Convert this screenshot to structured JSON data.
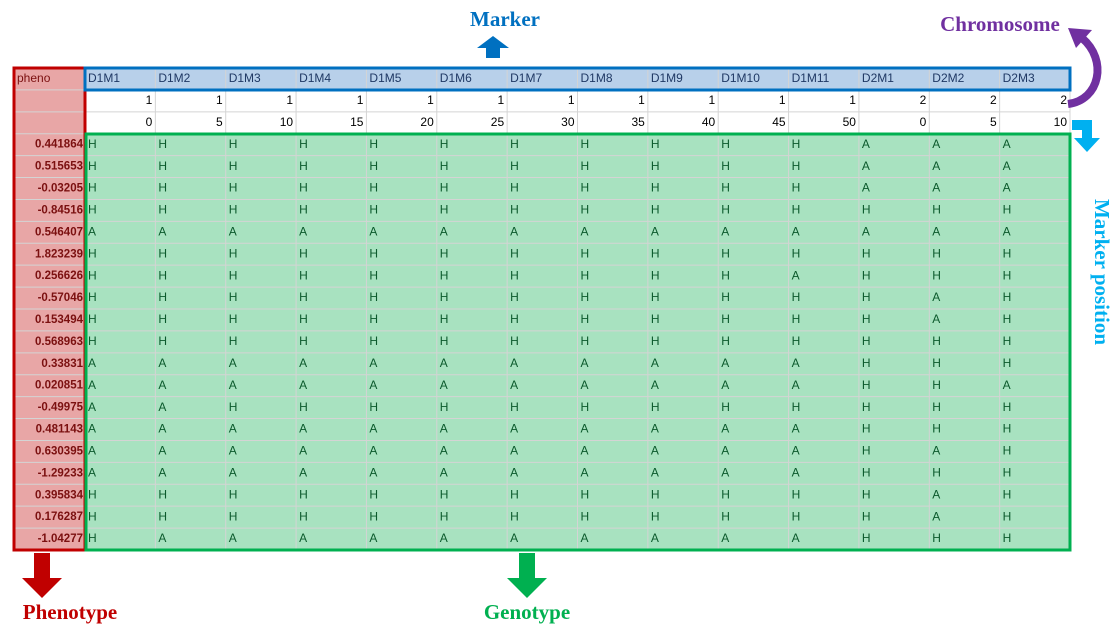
{
  "labels": {
    "marker": "Marker",
    "chromosome": "Chromosome",
    "marker_position": "Marker position",
    "phenotype": "Phenotype",
    "genotype": "Genotype"
  },
  "table": {
    "header": [
      "pheno",
      "D1M1",
      "D1M2",
      "D1M3",
      "D1M4",
      "D1M5",
      "D1M6",
      "D1M7",
      "D1M8",
      "D1M9",
      "D1M10",
      "D1M11",
      "D2M1",
      "D2M2",
      "D2M3"
    ],
    "chromosome": [
      1,
      1,
      1,
      1,
      1,
      1,
      1,
      1,
      1,
      1,
      1,
      2,
      2,
      2
    ],
    "position": [
      0,
      5,
      10,
      15,
      20,
      25,
      30,
      35,
      40,
      45,
      50,
      0,
      5,
      10
    ],
    "rows": [
      {
        "pheno": 0.441864,
        "genotypes": [
          "H",
          "H",
          "H",
          "H",
          "H",
          "H",
          "H",
          "H",
          "H",
          "H",
          "H",
          "A",
          "A",
          "A"
        ]
      },
      {
        "pheno": 0.515653,
        "genotypes": [
          "H",
          "H",
          "H",
          "H",
          "H",
          "H",
          "H",
          "H",
          "H",
          "H",
          "H",
          "A",
          "A",
          "A"
        ]
      },
      {
        "pheno": -0.03205,
        "genotypes": [
          "H",
          "H",
          "H",
          "H",
          "H",
          "H",
          "H",
          "H",
          "H",
          "H",
          "H",
          "A",
          "A",
          "A"
        ]
      },
      {
        "pheno": -0.84516,
        "genotypes": [
          "H",
          "H",
          "H",
          "H",
          "H",
          "H",
          "H",
          "H",
          "H",
          "H",
          "H",
          "H",
          "H",
          "H"
        ]
      },
      {
        "pheno": 0.546407,
        "genotypes": [
          "A",
          "A",
          "A",
          "A",
          "A",
          "A",
          "A",
          "A",
          "A",
          "A",
          "A",
          "A",
          "A",
          "A"
        ]
      },
      {
        "pheno": 1.823239,
        "genotypes": [
          "H",
          "H",
          "H",
          "H",
          "H",
          "H",
          "H",
          "H",
          "H",
          "H",
          "H",
          "H",
          "H",
          "H"
        ]
      },
      {
        "pheno": 0.256626,
        "genotypes": [
          "H",
          "H",
          "H",
          "H",
          "H",
          "H",
          "H",
          "H",
          "H",
          "H",
          "A",
          "H",
          "H",
          "H"
        ]
      },
      {
        "pheno": -0.57046,
        "genotypes": [
          "H",
          "H",
          "H",
          "H",
          "H",
          "H",
          "H",
          "H",
          "H",
          "H",
          "H",
          "H",
          "A",
          "H"
        ]
      },
      {
        "pheno": 0.153494,
        "genotypes": [
          "H",
          "H",
          "H",
          "H",
          "H",
          "H",
          "H",
          "H",
          "H",
          "H",
          "H",
          "H",
          "A",
          "H"
        ]
      },
      {
        "pheno": 0.568963,
        "genotypes": [
          "H",
          "H",
          "H",
          "H",
          "H",
          "H",
          "H",
          "H",
          "H",
          "H",
          "H",
          "H",
          "H",
          "H"
        ]
      },
      {
        "pheno": 0.33831,
        "genotypes": [
          "A",
          "A",
          "A",
          "A",
          "A",
          "A",
          "A",
          "A",
          "A",
          "A",
          "A",
          "H",
          "H",
          "H"
        ]
      },
      {
        "pheno": 0.020851,
        "genotypes": [
          "A",
          "A",
          "A",
          "A",
          "A",
          "A",
          "A",
          "A",
          "A",
          "A",
          "A",
          "H",
          "H",
          "A"
        ]
      },
      {
        "pheno": -0.49975,
        "genotypes": [
          "A",
          "A",
          "H",
          "H",
          "H",
          "H",
          "H",
          "H",
          "H",
          "H",
          "H",
          "H",
          "H",
          "H"
        ]
      },
      {
        "pheno": 0.481143,
        "genotypes": [
          "A",
          "A",
          "A",
          "A",
          "A",
          "A",
          "A",
          "A",
          "A",
          "A",
          "A",
          "H",
          "H",
          "H"
        ]
      },
      {
        "pheno": 0.630395,
        "genotypes": [
          "A",
          "A",
          "A",
          "A",
          "A",
          "A",
          "A",
          "A",
          "A",
          "A",
          "A",
          "H",
          "A",
          "H"
        ]
      },
      {
        "pheno": -1.29233,
        "genotypes": [
          "A",
          "A",
          "A",
          "A",
          "A",
          "A",
          "A",
          "A",
          "A",
          "A",
          "A",
          "H",
          "H",
          "H"
        ]
      },
      {
        "pheno": 0.395834,
        "genotypes": [
          "H",
          "H",
          "H",
          "H",
          "H",
          "H",
          "H",
          "H",
          "H",
          "H",
          "H",
          "H",
          "A",
          "H"
        ]
      },
      {
        "pheno": 0.176287,
        "genotypes": [
          "H",
          "H",
          "H",
          "H",
          "H",
          "H",
          "H",
          "H",
          "H",
          "H",
          "H",
          "H",
          "A",
          "H"
        ]
      },
      {
        "pheno": -1.04277,
        "genotypes": [
          "H",
          "A",
          "A",
          "A",
          "A",
          "A",
          "A",
          "A",
          "A",
          "A",
          "A",
          "H",
          "H",
          "H"
        ]
      }
    ]
  }
}
